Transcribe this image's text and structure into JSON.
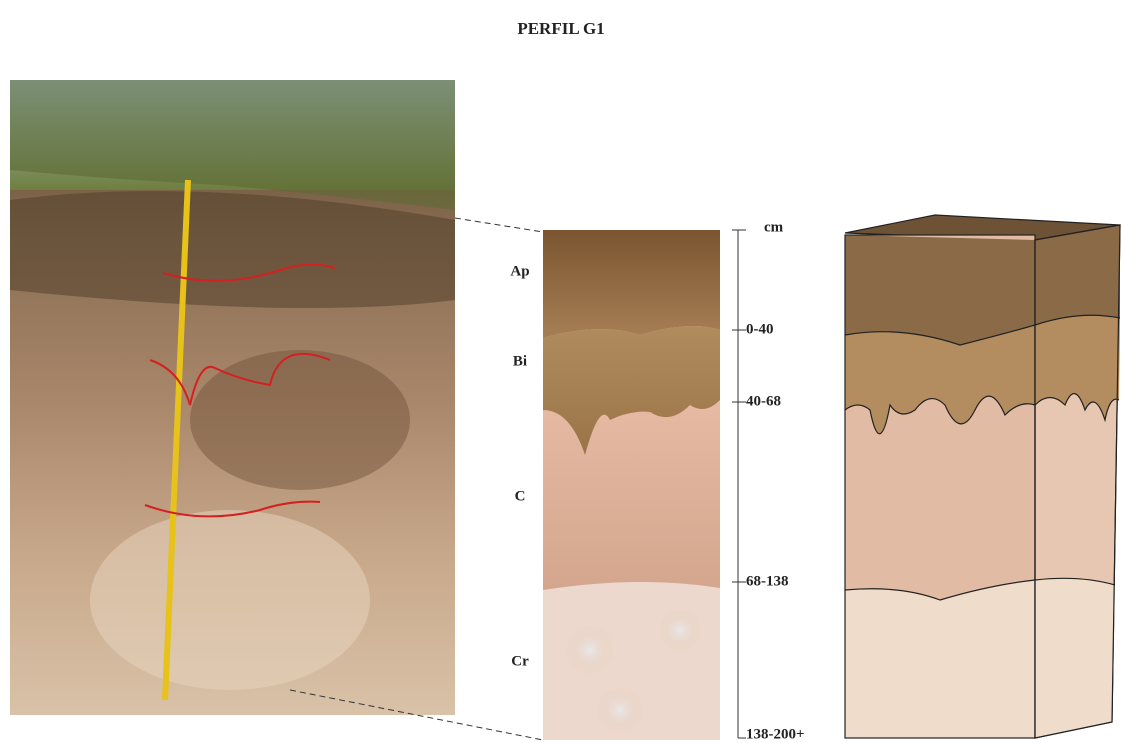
{
  "title": "PERFIL G1",
  "horizons": [
    "Ap",
    "Bi",
    "C",
    "Cr"
  ],
  "depth_scale": {
    "unit": "cm",
    "labels": [
      "0-40",
      "40-68",
      "68-138",
      "138-200+"
    ]
  }
}
